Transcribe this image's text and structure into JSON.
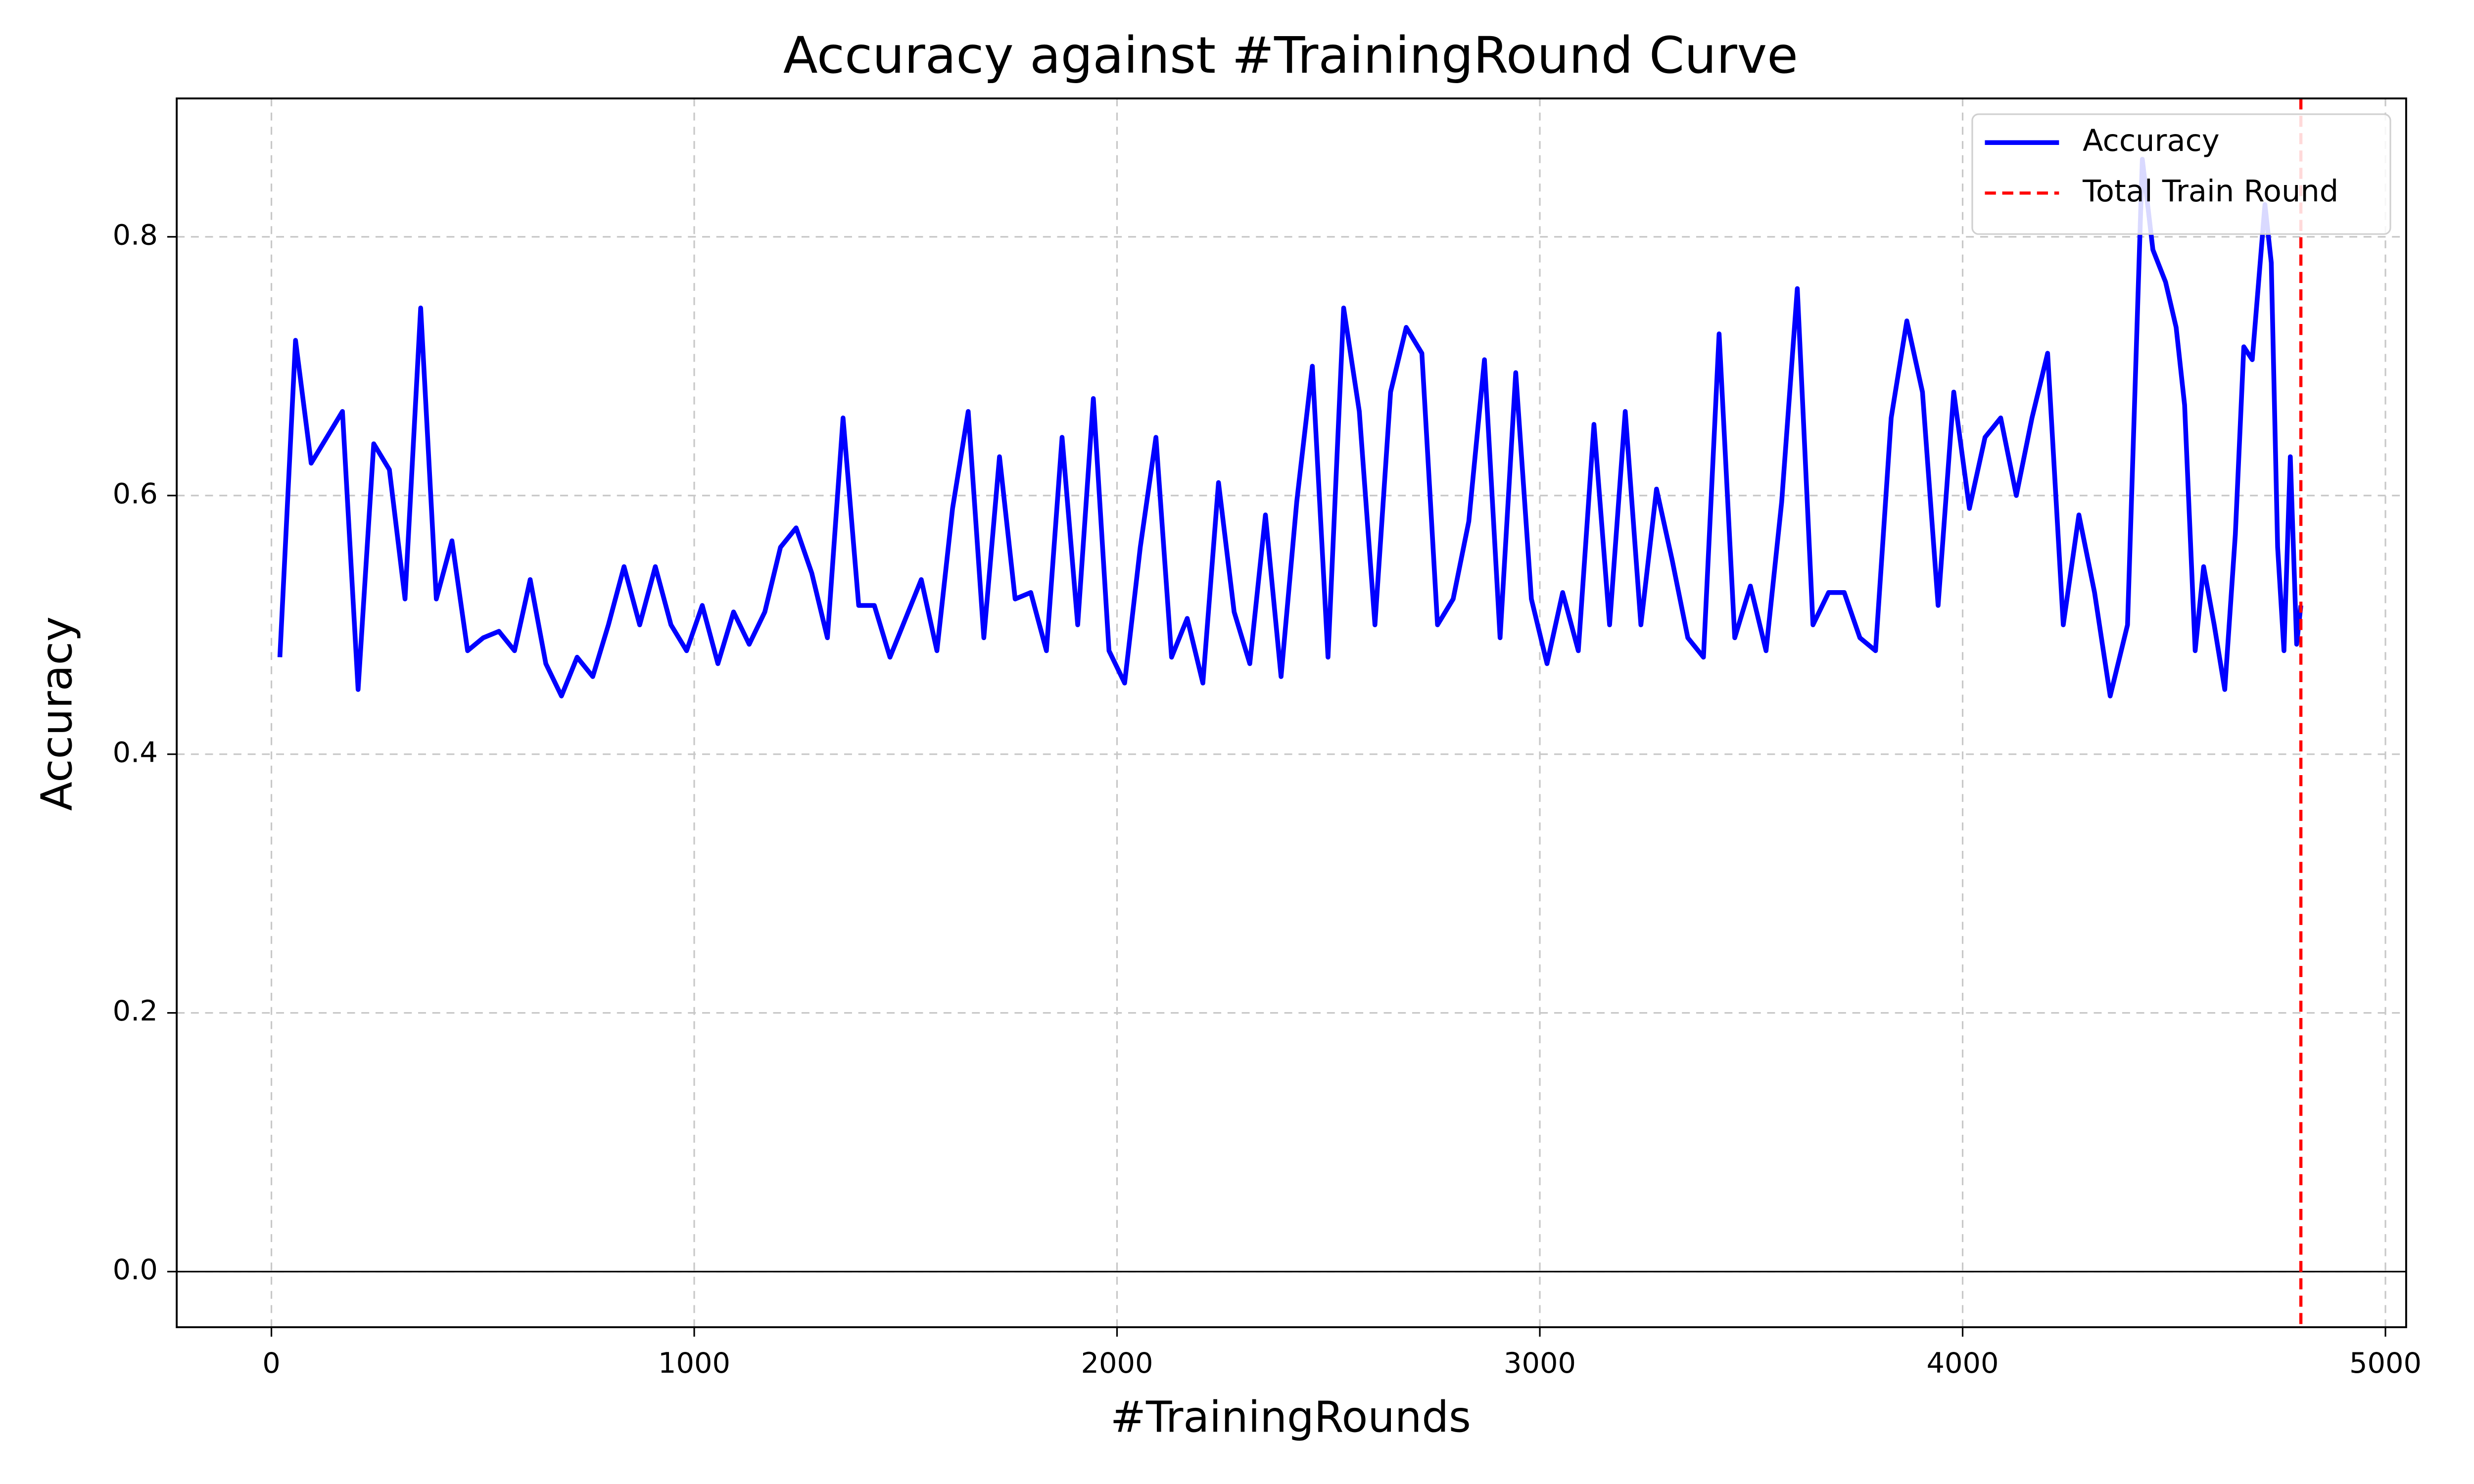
{
  "chart_data": {
    "type": "line",
    "title": "Accuracy against #TrainingRound Curve",
    "x_label": "#TrainingRounds",
    "y_label": "Accuracy",
    "x": [
      20,
      57,
      94,
      131,
      168,
      205,
      242,
      279,
      316,
      353,
      390,
      427,
      464,
      501,
      538,
      575,
      612,
      649,
      686,
      723,
      760,
      797,
      834,
      871,
      908,
      945,
      982,
      1019,
      1056,
      1093,
      1130,
      1167,
      1204,
      1241,
      1278,
      1315,
      1352,
      1389,
      1426,
      1463,
      1500,
      1537,
      1574,
      1611,
      1648,
      1685,
      1722,
      1759,
      1796,
      1833,
      1870,
      1907,
      1944,
      1981,
      2018,
      2055,
      2092,
      2129,
      2166,
      2203,
      2240,
      2277,
      2314,
      2351,
      2388,
      2425,
      2462,
      2499,
      2536,
      2573,
      2610,
      2647,
      2684,
      2721,
      2758,
      2795,
      2832,
      2869,
      2906,
      2943,
      2980,
      3017,
      3054,
      3091,
      3128,
      3165,
      3202,
      3239,
      3276,
      3313,
      3350,
      3387,
      3424,
      3461,
      3498,
      3535,
      3572,
      3609,
      3646,
      3683,
      3720,
      3757,
      3794,
      3831,
      3868,
      3905,
      3942,
      3979,
      4016,
      4053,
      4090,
      4127,
      4164,
      4201,
      4238,
      4275,
      4312,
      4349,
      4390,
      4425,
      4450,
      4480,
      4505,
      4525,
      4550,
      4570,
      4595,
      4620,
      4645,
      4665,
      4685,
      4715,
      4730,
      4745,
      4760,
      4775,
      4790,
      4800
    ],
    "series": [
      {
        "name": "Accuracy",
        "color": "#0000ff",
        "values": [
          0.475,
          0.72,
          0.625,
          0.645,
          0.665,
          0.45,
          0.64,
          0.62,
          0.52,
          0.745,
          0.52,
          0.565,
          0.48,
          0.49,
          0.495,
          0.48,
          0.535,
          0.47,
          0.445,
          0.475,
          0.46,
          0.5,
          0.545,
          0.5,
          0.545,
          0.5,
          0.48,
          0.515,
          0.47,
          0.51,
          0.485,
          0.51,
          0.56,
          0.575,
          0.54,
          0.49,
          0.66,
          0.515,
          0.515,
          0.475,
          0.505,
          0.535,
          0.48,
          0.59,
          0.665,
          0.49,
          0.63,
          0.52,
          0.525,
          0.48,
          0.645,
          0.5,
          0.675,
          0.48,
          0.455,
          0.56,
          0.645,
          0.475,
          0.505,
          0.455,
          0.61,
          0.51,
          0.47,
          0.585,
          0.46,
          0.595,
          0.7,
          0.475,
          0.745,
          0.665,
          0.5,
          0.68,
          0.73,
          0.71,
          0.5,
          0.52,
          0.58,
          0.705,
          0.49,
          0.695,
          0.52,
          0.47,
          0.525,
          0.48,
          0.655,
          0.5,
          0.665,
          0.5,
          0.605,
          0.55,
          0.49,
          0.475,
          0.725,
          0.49,
          0.53,
          0.48,
          0.595,
          0.76,
          0.5,
          0.525,
          0.525,
          0.49,
          0.48,
          0.66,
          0.735,
          0.68,
          0.515,
          0.68,
          0.59,
          0.645,
          0.66,
          0.6,
          0.66,
          0.71,
          0.5,
          0.585,
          0.525,
          0.445,
          0.5,
          0.86,
          0.79,
          0.765,
          0.73,
          0.67,
          0.48,
          0.545,
          0.5,
          0.45,
          0.57,
          0.715,
          0.705,
          0.825,
          0.78,
          0.56,
          0.48,
          0.63,
          0.485,
          0.515
        ]
      }
    ],
    "vline": {
      "x": 4800,
      "name": "Total Train Round",
      "color": "#ff0000"
    },
    "hline": {
      "y": 0,
      "color": "#000000"
    },
    "xlim": [
      -224,
      5049
    ],
    "ylim": [
      -0.043,
      0.907
    ],
    "xticks": [
      0,
      1000,
      2000,
      3000,
      4000,
      5000
    ],
    "yticks": [
      {
        "value": 0,
        "label": "0.0"
      },
      0.2,
      0.4,
      0.6,
      0.8
    ],
    "grid": true,
    "legend": "upper right"
  }
}
